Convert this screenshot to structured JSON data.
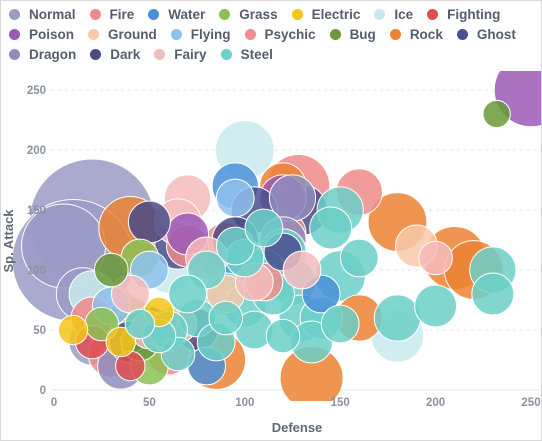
{
  "chart_data": {
    "type": "scatter",
    "subtype": "bubble",
    "xlabel": "Defense",
    "ylabel": "Sp. Attack",
    "xlim": [
      0,
      250
    ],
    "ylim": [
      0,
      250
    ],
    "xticks": [
      "0",
      "50",
      "100",
      "150",
      "200",
      "250"
    ],
    "yticks": [
      "0",
      "50",
      "100",
      "150",
      "200",
      "250"
    ],
    "grid": "horizontal dashed",
    "legend_position": "top",
    "types": [
      {
        "name": "Normal",
        "color": "#9b9bc6"
      },
      {
        "name": "Fire",
        "color": "#ef8a8a"
      },
      {
        "name": "Water",
        "color": "#4a90d9"
      },
      {
        "name": "Grass",
        "color": "#8cc152"
      },
      {
        "name": "Electric",
        "color": "#f5c518"
      },
      {
        "name": "Ice",
        "color": "#c9eaec"
      },
      {
        "name": "Fighting",
        "color": "#e04c52"
      },
      {
        "name": "Poison",
        "color": "#9b59b6"
      },
      {
        "name": "Ground",
        "color": "#f8c9a8"
      },
      {
        "name": "Flying",
        "color": "#8ec1ec"
      },
      {
        "name": "Psychic",
        "color": "#f08c8c"
      },
      {
        "name": "Bug",
        "color": "#6a9a3a"
      },
      {
        "name": "Rock",
        "color": "#ec8332"
      },
      {
        "name": "Ghost",
        "color": "#4a4f8e"
      },
      {
        "name": "Dragon",
        "color": "#8f8dbd"
      },
      {
        "name": "Dark",
        "color": "#4a4a86"
      },
      {
        "name": "Fairy",
        "color": "#f4bcbc"
      },
      {
        "name": "Steel",
        "color": "#6ccfc8"
      }
    ],
    "points": [
      {
        "type": "Normal",
        "x": 10,
        "y": 108,
        "size": 58
      },
      {
        "type": "Normal",
        "x": 20,
        "y": 140,
        "size": 60
      },
      {
        "type": "Normal",
        "x": 5,
        "y": 120,
        "size": 40
      },
      {
        "type": "Normal",
        "x": 30,
        "y": 60,
        "size": 30
      },
      {
        "type": "Normal",
        "x": 20,
        "y": 40,
        "size": 22
      },
      {
        "type": "Normal",
        "x": 15,
        "y": 80,
        "size": 25
      },
      {
        "type": "Ice",
        "x": 100,
        "y": 200,
        "size": 28
      },
      {
        "type": "Ice",
        "x": 20,
        "y": 80,
        "size": 22
      },
      {
        "type": "Ice",
        "x": 180,
        "y": 45,
        "size": 25
      },
      {
        "type": "Ice",
        "x": 60,
        "y": 100,
        "size": 22
      },
      {
        "type": "Rock",
        "x": 180,
        "y": 140,
        "size": 28
      },
      {
        "type": "Rock",
        "x": 40,
        "y": 135,
        "size": 30
      },
      {
        "type": "Rock",
        "x": 210,
        "y": 110,
        "size": 30
      },
      {
        "type": "Rock",
        "x": 220,
        "y": 100,
        "size": 28
      },
      {
        "type": "Rock",
        "x": 135,
        "y": 10,
        "size": 30
      },
      {
        "type": "Rock",
        "x": 85,
        "y": 25,
        "size": 28
      },
      {
        "type": "Rock",
        "x": 45,
        "y": 50,
        "size": 26
      },
      {
        "type": "Rock",
        "x": 160,
        "y": 60,
        "size": 22
      },
      {
        "type": "Rock",
        "x": 120,
        "y": 170,
        "size": 22
      },
      {
        "type": "Fire",
        "x": 128,
        "y": 170,
        "size": 30
      },
      {
        "type": "Fire",
        "x": 160,
        "y": 165,
        "size": 22
      },
      {
        "type": "Fire",
        "x": 20,
        "y": 60,
        "size": 20
      },
      {
        "type": "Fire",
        "x": 120,
        "y": 130,
        "size": 22
      },
      {
        "type": "Fire",
        "x": 70,
        "y": 120,
        "size": 20
      },
      {
        "type": "Psychic",
        "x": 90,
        "y": 120,
        "size": 22
      },
      {
        "type": "Psychic",
        "x": 30,
        "y": 30,
        "size": 22
      },
      {
        "type": "Psychic",
        "x": 60,
        "y": 30,
        "size": 20
      },
      {
        "type": "Psychic",
        "x": 110,
        "y": 90,
        "size": 18
      },
      {
        "type": "Fighting",
        "x": 20,
        "y": 40,
        "size": 16
      },
      {
        "type": "Fighting",
        "x": 40,
        "y": 20,
        "size": 14
      },
      {
        "type": "Water",
        "x": 95,
        "y": 170,
        "size": 22
      },
      {
        "type": "Water",
        "x": 90,
        "y": 100,
        "size": 20
      },
      {
        "type": "Water",
        "x": 60,
        "y": 50,
        "size": 20
      },
      {
        "type": "Water",
        "x": 80,
        "y": 20,
        "size": 18
      },
      {
        "type": "Water",
        "x": 140,
        "y": 80,
        "size": 18
      },
      {
        "type": "Grass",
        "x": 40,
        "y": 60,
        "size": 20
      },
      {
        "type": "Grass",
        "x": 25,
        "y": 55,
        "size": 16
      },
      {
        "type": "Grass",
        "x": 50,
        "y": 20,
        "size": 18
      },
      {
        "type": "Grass",
        "x": 45,
        "y": 110,
        "size": 18
      },
      {
        "type": "Electric",
        "x": 10,
        "y": 50,
        "size": 14
      },
      {
        "type": "Electric",
        "x": 35,
        "y": 40,
        "size": 14
      },
      {
        "type": "Electric",
        "x": 55,
        "y": 65,
        "size": 14
      },
      {
        "type": "Poison",
        "x": 250,
        "y": 250,
        "size": 35
      },
      {
        "type": "Poison",
        "x": 70,
        "y": 130,
        "size": 20
      },
      {
        "type": "Poison",
        "x": 120,
        "y": 160,
        "size": 22
      },
      {
        "type": "Ground",
        "x": 190,
        "y": 120,
        "size": 20
      },
      {
        "type": "Ground",
        "x": 65,
        "y": 55,
        "size": 18
      },
      {
        "type": "Ground",
        "x": 90,
        "y": 80,
        "size": 18
      },
      {
        "type": "Flying",
        "x": 30,
        "y": 70,
        "size": 18
      },
      {
        "type": "Flying",
        "x": 50,
        "y": 100,
        "size": 18
      },
      {
        "type": "Flying",
        "x": 95,
        "y": 160,
        "size": 18
      },
      {
        "type": "Bug",
        "x": 232,
        "y": 230,
        "size": 13
      },
      {
        "type": "Bug",
        "x": 45,
        "y": 40,
        "size": 18
      },
      {
        "type": "Bug",
        "x": 30,
        "y": 100,
        "size": 16
      },
      {
        "type": "Ghost",
        "x": 105,
        "y": 150,
        "size": 22
      },
      {
        "type": "Ghost",
        "x": 65,
        "y": 120,
        "size": 22
      },
      {
        "type": "Ghost",
        "x": 40,
        "y": 40,
        "size": 20
      },
      {
        "type": "Ghost",
        "x": 120,
        "y": 115,
        "size": 18
      },
      {
        "type": "Dragon",
        "x": 125,
        "y": 160,
        "size": 22
      },
      {
        "type": "Dragon",
        "x": 120,
        "y": 125,
        "size": 22
      },
      {
        "type": "Dragon",
        "x": 35,
        "y": 20,
        "size": 22
      },
      {
        "type": "Dark",
        "x": 130,
        "y": 150,
        "size": 24
      },
      {
        "type": "Dark",
        "x": 50,
        "y": 50,
        "size": 22
      },
      {
        "type": "Dark",
        "x": 95,
        "y": 125,
        "size": 22
      },
      {
        "type": "Dark",
        "x": 50,
        "y": 140,
        "size": 20
      },
      {
        "type": "Dark",
        "x": 75,
        "y": 50,
        "size": 20
      },
      {
        "type": "Fairy",
        "x": 70,
        "y": 160,
        "size": 22
      },
      {
        "type": "Fairy",
        "x": 65,
        "y": 140,
        "size": 22
      },
      {
        "type": "Fairy",
        "x": 80,
        "y": 110,
        "size": 20
      },
      {
        "type": "Fairy",
        "x": 40,
        "y": 80,
        "size": 18
      },
      {
        "type": "Fairy",
        "x": 50,
        "y": 50,
        "size": 18
      },
      {
        "type": "Fairy",
        "x": 105,
        "y": 90,
        "size": 18
      },
      {
        "type": "Fairy",
        "x": 130,
        "y": 100,
        "size": 18
      },
      {
        "type": "Fairy",
        "x": 200,
        "y": 110,
        "size": 16
      },
      {
        "type": "Steel",
        "x": 120,
        "y": 115,
        "size": 22
      },
      {
        "type": "Steel",
        "x": 100,
        "y": 110,
        "size": 18
      },
      {
        "type": "Steel",
        "x": 110,
        "y": 100,
        "size": 20
      },
      {
        "type": "Steel",
        "x": 80,
        "y": 100,
        "size": 18
      },
      {
        "type": "Steel",
        "x": 90,
        "y": 80,
        "size": 20
      },
      {
        "type": "Steel",
        "x": 75,
        "y": 60,
        "size": 18
      },
      {
        "type": "Steel",
        "x": 60,
        "y": 50,
        "size": 18
      },
      {
        "type": "Steel",
        "x": 100,
        "y": 70,
        "size": 20
      },
      {
        "type": "Steel",
        "x": 115,
        "y": 80,
        "size": 20
      },
      {
        "type": "Steel",
        "x": 125,
        "y": 90,
        "size": 22
      },
      {
        "type": "Steel",
        "x": 105,
        "y": 50,
        "size": 18
      },
      {
        "type": "Steel",
        "x": 85,
        "y": 40,
        "size": 18
      },
      {
        "type": "Steel",
        "x": 140,
        "y": 60,
        "size": 20
      },
      {
        "type": "Steel",
        "x": 150,
        "y": 95,
        "size": 24
      },
      {
        "type": "Steel",
        "x": 145,
        "y": 135,
        "size": 20
      },
      {
        "type": "Steel",
        "x": 150,
        "y": 150,
        "size": 22
      },
      {
        "type": "Steel",
        "x": 180,
        "y": 60,
        "size": 22
      },
      {
        "type": "Steel",
        "x": 200,
        "y": 70,
        "size": 20
      },
      {
        "type": "Steel",
        "x": 230,
        "y": 100,
        "size": 22
      },
      {
        "type": "Steel",
        "x": 230,
        "y": 80,
        "size": 20
      },
      {
        "type": "Steel",
        "x": 130,
        "y": 60,
        "size": 22
      },
      {
        "type": "Steel",
        "x": 135,
        "y": 40,
        "size": 20
      },
      {
        "type": "Steel",
        "x": 65,
        "y": 30,
        "size": 16
      },
      {
        "type": "Steel",
        "x": 55,
        "y": 45,
        "size": 16
      },
      {
        "type": "Steel",
        "x": 95,
        "y": 120,
        "size": 18
      },
      {
        "type": "Steel",
        "x": 160,
        "y": 110,
        "size": 18
      },
      {
        "type": "Steel",
        "x": 110,
        "y": 135,
        "size": 18
      },
      {
        "type": "Steel",
        "x": 150,
        "y": 55,
        "size": 18
      },
      {
        "type": "Steel",
        "x": 45,
        "y": 55,
        "size": 14
      },
      {
        "type": "Steel",
        "x": 120,
        "y": 45,
        "size": 16
      },
      {
        "type": "Steel",
        "x": 90,
        "y": 60,
        "size": 16
      },
      {
        "type": "Steel",
        "x": 70,
        "y": 80,
        "size": 18
      }
    ]
  }
}
